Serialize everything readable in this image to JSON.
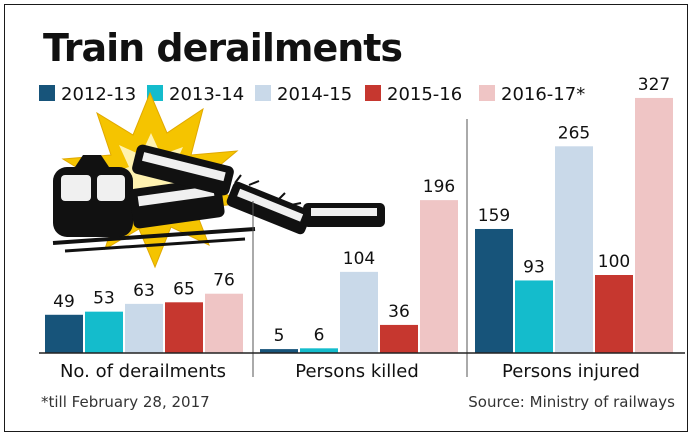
{
  "chart_data": {
    "type": "bar",
    "title": "Train derailments",
    "categories": [
      "No. of derailments",
      "Persons killed",
      "Persons injured"
    ],
    "series": [
      {
        "name": "2012-13",
        "color": "#17547a",
        "values": [
          49,
          5,
          159
        ]
      },
      {
        "name": "2013-14",
        "color": "#14bccc",
        "values": [
          53,
          6,
          93
        ]
      },
      {
        "name": "2014-15",
        "color": "#c9d9e9",
        "values": [
          63,
          104,
          265
        ]
      },
      {
        "name": "2015-16",
        "color": "#c6372f",
        "values": [
          65,
          36,
          100
        ]
      },
      {
        "name": "2016-17*",
        "color": "#efc5c5",
        "values": [
          76,
          196,
          327
        ]
      }
    ],
    "footnote": "*till February 28, 2017",
    "source": "Source: Ministry of railways",
    "legend_position": "top",
    "grid": false
  },
  "illustration": {
    "icon": "train-derailment-icon"
  }
}
